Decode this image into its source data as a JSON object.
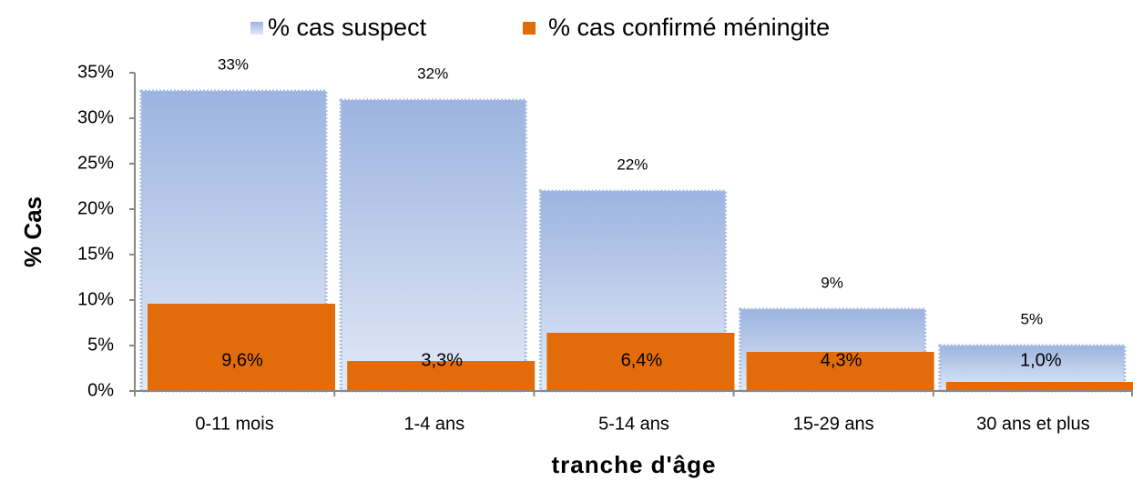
{
  "chart_data": {
    "type": "bar",
    "legend": "top",
    "xlabel": "tranche d'âge",
    "ylabel": "% Cas",
    "categories": [
      "0-11 mois",
      "1-4 ans",
      "5-14 ans",
      "15-29 ans",
      "30 ans et plus"
    ],
    "series": [
      {
        "name": "% cas suspect",
        "color": "#a3bbe3",
        "values": [
          33,
          32,
          22,
          9,
          5
        ],
        "value_labels": [
          "33%",
          "32%",
          "22%",
          "9%",
          "5%"
        ]
      },
      {
        "name": "% cas confirmé méningite",
        "color": "#e36c0a",
        "values": [
          9.6,
          3.3,
          6.4,
          4.3,
          1.0
        ],
        "value_labels": [
          "9,6%",
          "3,3%",
          "6,4%",
          "4,3%",
          "1,0%"
        ]
      }
    ],
    "ylim": [
      0,
      35
    ],
    "yticks": [
      {
        "value": 0,
        "label": "0%"
      },
      {
        "value": 5,
        "label": "5%"
      },
      {
        "value": 10,
        "label": "10%"
      },
      {
        "value": 15,
        "label": "15%"
      },
      {
        "value": 20,
        "label": "20%"
      },
      {
        "value": 25,
        "label": "25%"
      },
      {
        "value": 30,
        "label": "30%"
      },
      {
        "value": 35,
        "label": "35%"
      }
    ]
  }
}
